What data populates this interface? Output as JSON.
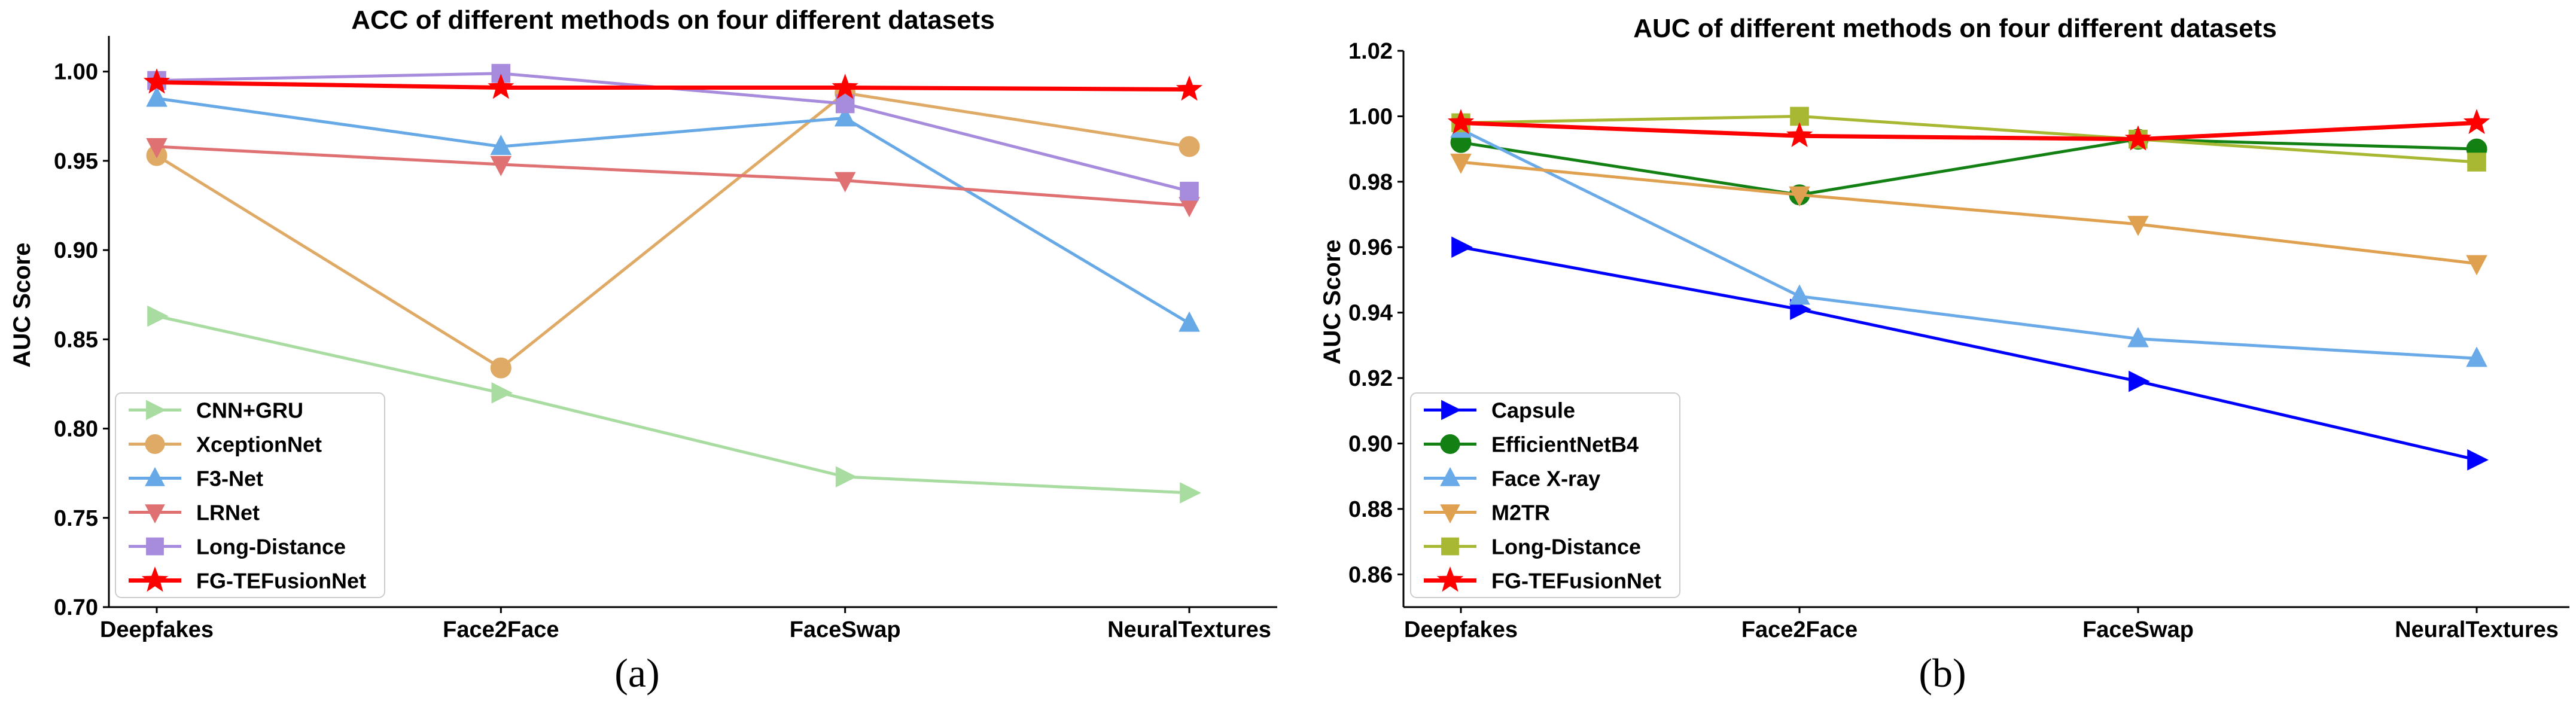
{
  "chart_data": [
    {
      "type": "line",
      "title": "ACC of different methods on four different datasets",
      "xlabel": "",
      "ylabel": "AUC Score",
      "caption": "(a)",
      "categories": [
        "Deepfakes",
        "Face2Face",
        "FaceSwap",
        "NeuralTextures"
      ],
      "ylim": [
        0.7,
        1.02
      ],
      "yticks": [
        "0.70",
        "0.75",
        "0.80",
        "0.85",
        "0.90",
        "0.95",
        "1.00"
      ],
      "legend_position": "lower-left",
      "grid": false,
      "series": [
        {
          "name": "CNN+GRU",
          "color": "#a8dca0",
          "marker": "triangle-right",
          "values": [
            0.863,
            0.82,
            0.773,
            0.764
          ]
        },
        {
          "name": "XceptionNet",
          "color": "#dfaa66",
          "marker": "circle",
          "values": [
            0.953,
            0.834,
            0.988,
            0.958
          ]
        },
        {
          "name": "F3-Net",
          "color": "#67a9e6",
          "marker": "triangle-up",
          "values": [
            0.985,
            0.958,
            0.974,
            0.859
          ]
        },
        {
          "name": "LRNet",
          "color": "#e07173",
          "marker": "triangle-down",
          "values": [
            0.958,
            0.948,
            0.939,
            0.925
          ]
        },
        {
          "name": "Long-Distance",
          "color": "#a78bdc",
          "marker": "square",
          "values": [
            0.995,
            0.999,
            0.982,
            0.933
          ]
        },
        {
          "name": "FG-TEFusionNet",
          "color": "#ff0000",
          "marker": "star",
          "values": [
            0.994,
            0.991,
            0.991,
            0.99
          ]
        }
      ]
    },
    {
      "type": "line",
      "title": "AUC of different methods on four different datasets",
      "xlabel": "",
      "ylabel": "AUC Score",
      "caption": "(b)",
      "categories": [
        "Deepfakes",
        "Face2Face",
        "FaceSwap",
        "NeuralTextures"
      ],
      "ylim": [
        0.85,
        1.02
      ],
      "yticks": [
        "0.86",
        "0.88",
        "0.90",
        "0.92",
        "0.94",
        "0.96",
        "0.98",
        "1.00",
        "1.02"
      ],
      "legend_position": "lower-left",
      "grid": false,
      "series": [
        {
          "name": "Capsule",
          "color": "#0000ff",
          "marker": "triangle-right",
          "values": [
            0.96,
            0.941,
            0.919,
            0.895
          ]
        },
        {
          "name": "EfficientNetB4",
          "color": "#138013",
          "marker": "circle",
          "values": [
            0.992,
            0.976,
            0.993,
            0.99
          ]
        },
        {
          "name": "Face X-ray",
          "color": "#6aaae8",
          "marker": "triangle-up",
          "values": [
            0.996,
            0.945,
            0.932,
            0.926
          ]
        },
        {
          "name": "M2TR",
          "color": "#dfa050",
          "marker": "triangle-down",
          "values": [
            0.986,
            0.976,
            0.967,
            0.955
          ]
        },
        {
          "name": "Long-Distance",
          "color": "#a8b833",
          "marker": "square",
          "values": [
            0.998,
            1.0,
            0.993,
            0.986
          ]
        },
        {
          "name": "FG-TEFusionNet",
          "color": "#ff0000",
          "marker": "star",
          "values": [
            0.998,
            0.994,
            0.993,
            0.998
          ]
        }
      ]
    }
  ]
}
